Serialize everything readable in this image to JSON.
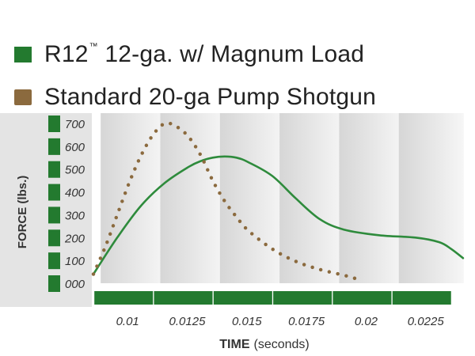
{
  "legend": {
    "items": [
      {
        "label": "R12",
        "mark": "™",
        "rest": " 12-ga. w/ Magnum Load",
        "color": "#237a2f"
      },
      {
        "label": "Standard 20-ga Pump Shotgun",
        "color": "#8b6a3e"
      }
    ]
  },
  "chart_data": {
    "type": "line",
    "xlabel": "TIME",
    "xlabel_unit": "(seconds)",
    "ylabel": "FORCE (lbs.)",
    "ylim": [
      0,
      700
    ],
    "xlim": [
      0.0085,
      0.0245
    ],
    "y_ticks": [
      "000",
      "100",
      "200",
      "300",
      "400",
      "500",
      "600",
      "700"
    ],
    "x_ticks": [
      {
        "value": 0.01,
        "label": "0.01"
      },
      {
        "value": 0.0125,
        "label": "0.0125"
      },
      {
        "value": 0.015,
        "label": "0.015"
      },
      {
        "value": 0.0175,
        "label": "0.0175"
      },
      {
        "value": 0.02,
        "label": "0.02"
      },
      {
        "value": 0.0225,
        "label": "0.0225"
      }
    ],
    "series": [
      {
        "name": "R12™ 12-ga. w/ Magnum Load",
        "style": "solid",
        "color": "#2e8b3c",
        "x": [
          0.0085,
          0.0095,
          0.0105,
          0.0115,
          0.0125,
          0.013,
          0.0135,
          0.014,
          0.0145,
          0.015,
          0.016,
          0.017,
          0.018,
          0.019,
          0.0205,
          0.022,
          0.023,
          0.0235,
          0.024
        ],
        "y": [
          40,
          200,
          340,
          440,
          510,
          535,
          550,
          555,
          550,
          530,
          470,
          370,
          280,
          235,
          210,
          200,
          180,
          150,
          110
        ]
      },
      {
        "name": "Standard 20-ga Pump Shotgun",
        "style": "dotted",
        "color": "#8b6a3e",
        "x": [
          0.0085,
          0.009,
          0.0095,
          0.01,
          0.0105,
          0.011,
          0.0115,
          0.012,
          0.0125,
          0.013,
          0.0135,
          0.014,
          0.0145,
          0.015,
          0.016,
          0.017,
          0.018,
          0.019,
          0.0195
        ],
        "y": [
          40,
          160,
          300,
          440,
          560,
          650,
          700,
          685,
          640,
          560,
          450,
          360,
          290,
          230,
          150,
          95,
          60,
          35,
          20
        ]
      }
    ]
  }
}
